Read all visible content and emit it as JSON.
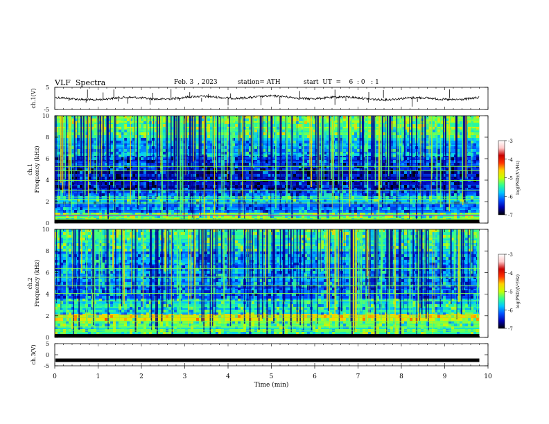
{
  "header": {
    "title": "VLF  Spectra",
    "date": "Feb. 3  , 2023",
    "station": "station= ATH",
    "start_ut": "start  UT  =    6  : 0   : 1"
  },
  "chart_data": [
    {
      "type": "line",
      "panel": "ch1-waveform",
      "ylabel": "ch.1(V)",
      "ylim": [
        -5,
        5
      ],
      "y_ticks": [
        "5",
        "-5"
      ],
      "xlim": [
        0,
        10
      ],
      "trace_color": "#000000",
      "baseline_v": 0.2,
      "data_end_min": 9.8
    },
    {
      "type": "heatmap",
      "panel": "ch1-spectrogram",
      "ylabel": "ch.1\nFrequency  (kHz)",
      "ylim": [
        0,
        10
      ],
      "y_ticks": [
        "0",
        "2",
        "4",
        "6",
        "8",
        "10"
      ],
      "xlim": [
        0,
        10
      ],
      "data_end_min": 9.8,
      "colorbar": {
        "label": "log(PSD)(V²/Hz)",
        "range": [
          -7,
          -3
        ],
        "ticks": [
          "-3",
          "-4",
          "-5",
          "-6",
          "-7"
        ],
        "colors": [
          "#000000",
          "#0000b0",
          "#0050ff",
          "#00c8ff",
          "#30ff90",
          "#c8ff00",
          "#ffd000",
          "#ff3000",
          "#c80000",
          "#ffc8c8",
          "#ffffff"
        ]
      }
    },
    {
      "type": "heatmap",
      "panel": "ch2-spectrogram",
      "ylabel": "ch.2\nFrequency  (kHz)",
      "ylim": [
        0,
        10
      ],
      "y_ticks": [
        "0",
        "2",
        "4",
        "6",
        "8",
        "10"
      ],
      "xlim": [
        0,
        10
      ],
      "data_end_min": 9.8,
      "colorbar": {
        "label": "log(PSD)(V²/Hz)",
        "range": [
          -7,
          -3
        ],
        "ticks": [
          "-3",
          "-4",
          "-5",
          "-6",
          "-7"
        ],
        "colors": [
          "#000000",
          "#0000b0",
          "#0050ff",
          "#00c8ff",
          "#30ff90",
          "#c8ff00",
          "#ffd000",
          "#ff3000",
          "#c80000",
          "#ffc8c8",
          "#ffffff"
        ]
      }
    },
    {
      "type": "line",
      "panel": "ch3-waveform",
      "ylabel": "ch.3(V)",
      "ylim": [
        -5,
        5
      ],
      "y_ticks": [
        "5",
        "0",
        "-5"
      ],
      "xlim": [
        0,
        10
      ],
      "x_ticks": [
        "0",
        "1",
        "2",
        "3",
        "4",
        "5",
        "6",
        "7",
        "8",
        "9",
        "10"
      ],
      "xlabel": "Time  (min)",
      "trace_color": "#000000",
      "baseline_v": -2.5,
      "data_end_min": 9.8
    }
  ]
}
